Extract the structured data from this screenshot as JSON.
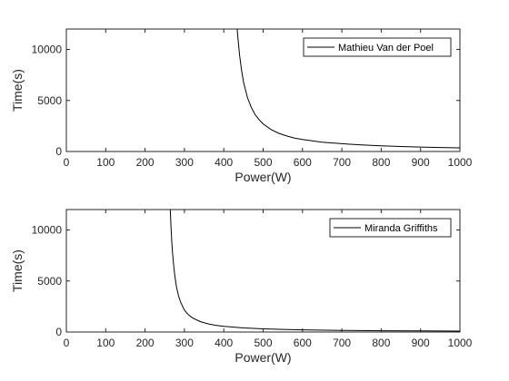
{
  "chart_data": [
    {
      "type": "line",
      "xlabel": "Power(W)",
      "ylabel": "Time(s)",
      "xlim": [
        0,
        1000
      ],
      "ylim": [
        0,
        12000
      ],
      "xticks": [
        0,
        100,
        200,
        300,
        400,
        500,
        600,
        700,
        800,
        900,
        1000
      ],
      "yticks": [
        0,
        5000,
        10000
      ],
      "xtick_labels": [
        "0",
        "100",
        "200",
        "300",
        "400",
        "500",
        "600",
        "700",
        "800",
        "900",
        "1000"
      ],
      "ytick_labels": [
        "0",
        "5000",
        "10000"
      ],
      "grid": false,
      "legend": "top-right",
      "series": [
        {
          "name": "Mathieu Van der Poel",
          "color": "#000000",
          "x": [
            434,
            436,
            440,
            445,
            450,
            460,
            470,
            480,
            490,
            500,
            520,
            540,
            560,
            580,
            600,
            650,
            700,
            750,
            800,
            850,
            900,
            950,
            1000
          ],
          "y": [
            12000,
            11100,
            9500,
            8000,
            6800,
            5300,
            4300,
            3600,
            3100,
            2700,
            2150,
            1780,
            1520,
            1320,
            1170,
            920,
            760,
            650,
            560,
            490,
            440,
            395,
            358
          ]
        }
      ]
    },
    {
      "type": "line",
      "xlabel": "Power(W)",
      "ylabel": "Time(s)",
      "xlim": [
        0,
        1000
      ],
      "ylim": [
        0,
        12000
      ],
      "xticks": [
        0,
        100,
        200,
        300,
        400,
        500,
        600,
        700,
        800,
        900,
        1000
      ],
      "yticks": [
        0,
        5000,
        10000
      ],
      "xtick_labels": [
        "0",
        "100",
        "200",
        "300",
        "400",
        "500",
        "600",
        "700",
        "800",
        "900",
        "1000"
      ],
      "ytick_labels": [
        "0",
        "5000",
        "10000"
      ],
      "grid": false,
      "legend": "top-right",
      "series": [
        {
          "name": "Miranda Griffiths",
          "color": "#000000",
          "x": [
            264,
            266,
            268,
            270,
            273,
            276,
            280,
            285,
            290,
            300,
            310,
            320,
            340,
            360,
            380,
            400,
            450,
            500,
            550,
            600,
            700,
            800,
            900,
            1000
          ],
          "y": [
            12000,
            10200,
            8800,
            7700,
            6400,
            5400,
            4400,
            3550,
            2950,
            2150,
            1700,
            1400,
            1020,
            800,
            660,
            560,
            400,
            310,
            255,
            215,
            160,
            125,
            103,
            87
          ]
        }
      ]
    }
  ]
}
